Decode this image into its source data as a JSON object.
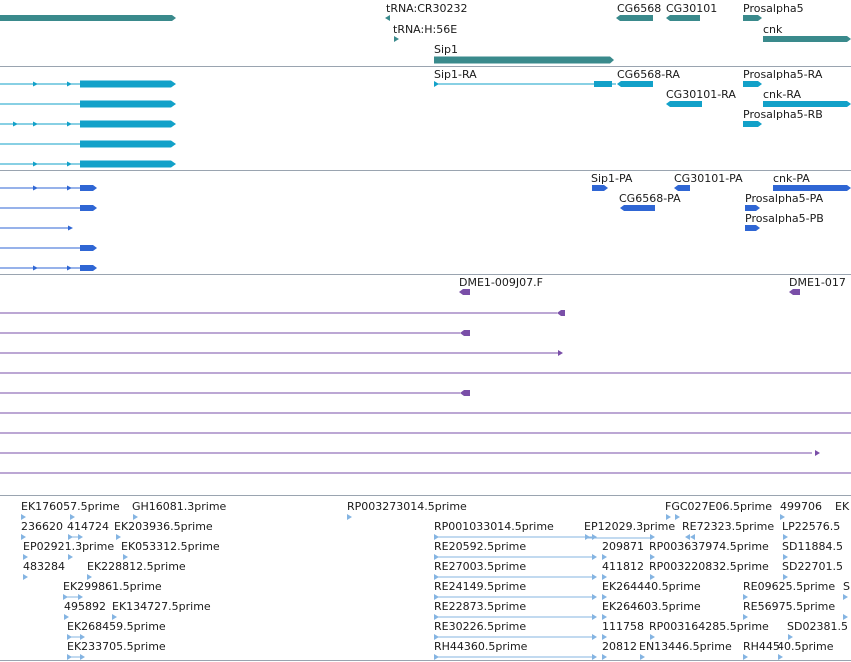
{
  "colors": {
    "gene": "#3a8a8c",
    "transcript": "#12a1c9",
    "protein": "#2f66d4",
    "est": "#7a4fa8",
    "cdna": "#84b4e2",
    "separator": "#9aa4b0"
  },
  "tracks": {
    "genes": {
      "labels": [
        "tRNA:CR30232",
        "tRNA:H:56E",
        "Sip1",
        "CG6568",
        "CG30101",
        "Prosalpha5",
        "cnk"
      ]
    },
    "transcripts": {
      "labels": [
        "Sip1-RA",
        "CG6568-RA",
        "Prosalpha5-RA",
        "CG30101-RA",
        "cnk-RA",
        "Prosalpha5-RB"
      ]
    },
    "proteins": {
      "labels": [
        "Sip1-PA",
        "CG30101-PA",
        "cnk-PA",
        "CG6568-PA",
        "Prosalpha5-PA",
        "Prosalpha5-PB"
      ]
    },
    "ests": {
      "labels": [
        "DME1-009J07.F",
        "DME1-017"
      ]
    },
    "cdna": {
      "labels": [
        "EK176057.5prime",
        "GH16081.3prime",
        "RP003273014.5prime",
        "FGC027E06.5prime",
        "499706",
        "EK",
        "236620",
        "414724",
        "EK203936.5prime",
        "RP001033014.5prime",
        "EP12029.3prime",
        "RE72323.5prime",
        "LP22576.5",
        "EP02921.3prime",
        "EK053312.5prime",
        "RE20592.5prime",
        "209871",
        "RP003637974.5prime",
        "SD11884.5",
        "483284",
        "EK228812.5prime",
        "RE27003.5prime",
        "411812",
        "RP003220832.5prime",
        "SD22701.5",
        "EK299861.5prime",
        "RE24149.5prime",
        "EK264440.5prime",
        "RE09625.5prime",
        "S",
        "495892",
        "EK134727.5prime",
        "RE22873.5prime",
        "EK264603.5prime",
        "RE56975.5prime",
        "EK268459.5prime",
        "RE30226.5prime",
        "111758",
        "RP003164285.5prime",
        "SD02381.5",
        "EK233705.5prime",
        "RH44360.5prime",
        "20812",
        "EN13446.5prime",
        "RH445",
        "40.5prime"
      ]
    }
  }
}
